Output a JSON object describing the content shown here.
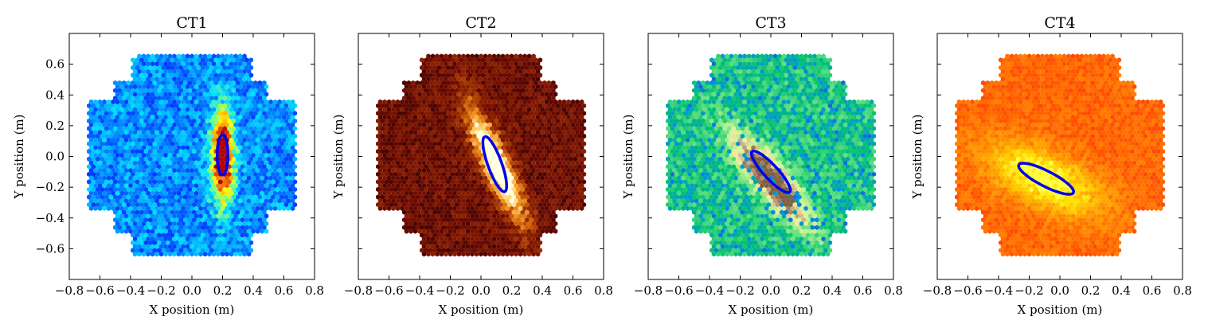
{
  "chart_data": [
    {
      "type": "heatmap",
      "title": "CT1",
      "xlabel": "X position (m)",
      "ylabel": "Y position (m)",
      "xlim": [
        -0.8,
        0.8
      ],
      "ylim": [
        -0.8,
        0.8
      ],
      "xticks": [
        "−0.8",
        "−0.6",
        "−0.4",
        "−0.2",
        "0.0",
        "0.2",
        "0.4",
        "0.6",
        "0.8"
      ],
      "yticks": [
        "−0.6",
        "−0.4",
        "−0.2",
        "0.0",
        "0.2",
        "0.4",
        "0.6"
      ],
      "ytick_labels_visible": true,
      "colormap": [
        "#0000b8",
        "#0020ff",
        "#0080ff",
        "#00e0ff",
        "#80ff80",
        "#ffff00",
        "#ff8000",
        "#b00000"
      ],
      "shower": {
        "center": [
          0.2,
          0.0
        ],
        "angle_deg": 90,
        "length": 0.4,
        "width": 0.05,
        "peak": 0.95
      },
      "hillas_ellipse": {
        "center": [
          0.2,
          0.01
        ],
        "semi_major": 0.13,
        "semi_minor": 0.035,
        "angle_deg": 90,
        "color": "#0000ee"
      }
    },
    {
      "type": "heatmap",
      "title": "CT2",
      "xlabel": "X position (m)",
      "ylabel": "Y position (m)",
      "xlim": [
        -0.8,
        0.8
      ],
      "ylim": [
        -0.8,
        0.8
      ],
      "xticks": [
        "−0.8",
        "−0.6",
        "−0.4",
        "−0.2",
        "0.0",
        "0.2",
        "0.4",
        "0.6",
        "0.8"
      ],
      "yticks": [
        "−0.6",
        "−0.4",
        "−0.2",
        "0.0",
        "0.2",
        "0.4",
        "0.6"
      ],
      "ytick_labels_visible": false,
      "colormap": [
        "#000000",
        "#3a0000",
        "#6b0a00",
        "#8b2000",
        "#c05000",
        "#f09020",
        "#ffd070",
        "#ffffe0"
      ],
      "shower": {
        "center": [
          0.1,
          -0.05
        ],
        "angle_deg": 115,
        "length": 0.55,
        "width": 0.06,
        "peak": 0.95
      },
      "hillas_ellipse": {
        "center": [
          0.09,
          -0.05
        ],
        "semi_major": 0.19,
        "semi_minor": 0.045,
        "angle_deg": 110,
        "color": "#0000ee"
      }
    },
    {
      "type": "heatmap",
      "title": "CT3",
      "xlabel": "X position (m)",
      "ylabel": "Y position (m)",
      "xlim": [
        -0.8,
        0.8
      ],
      "ylim": [
        -0.8,
        0.8
      ],
      "xticks": [
        "−0.8",
        "−0.6",
        "−0.4",
        "−0.2",
        "0.0",
        "0.2",
        "0.4",
        "0.6",
        "0.8"
      ],
      "yticks": [
        "−0.6",
        "−0.4",
        "−0.2",
        "0.0",
        "0.2",
        "0.4",
        "0.6"
      ],
      "ytick_labels_visible": false,
      "colormap": [
        "#2020b0",
        "#0090e0",
        "#00c070",
        "#60e080",
        "#c0f090",
        "#f0f0a0",
        "#c0a080",
        "#806040"
      ],
      "shower": {
        "center": [
          0.0,
          -0.15
        ],
        "angle_deg": 130,
        "length": 0.5,
        "width": 0.07,
        "peak": 0.95
      },
      "hillas_ellipse": {
        "center": [
          0.0,
          -0.1
        ],
        "semi_major": 0.18,
        "semi_minor": 0.045,
        "angle_deg": 133,
        "color": "#0000ee"
      }
    },
    {
      "type": "heatmap",
      "title": "CT4",
      "xlabel": "X position (m)",
      "ylabel": "Y position (m)",
      "xlim": [
        -0.8,
        0.8
      ],
      "ylim": [
        -0.8,
        0.8
      ],
      "xticks": [
        "−0.8",
        "−0.6",
        "−0.4",
        "−0.2",
        "0.0",
        "0.2",
        "0.4",
        "0.6",
        "0.8"
      ],
      "yticks": [
        "−0.6",
        "−0.4",
        "−0.2",
        "0.0",
        "0.2",
        "0.4",
        "0.6"
      ],
      "ytick_labels_visible": false,
      "colormap": [
        "#ff2000",
        "#ff4000",
        "#ff6000",
        "#ff8000",
        "#ffa000",
        "#ffc000",
        "#ffe000",
        "#ffff40"
      ],
      "shower": {
        "center": [
          -0.1,
          -0.15
        ],
        "angle_deg": 155,
        "length": 0.55,
        "width": 0.12,
        "peak": 0.8
      },
      "hillas_ellipse": {
        "center": [
          -0.09,
          -0.145
        ],
        "semi_major": 0.2,
        "semi_minor": 0.05,
        "angle_deg": 153,
        "color": "#0000ee"
      }
    }
  ]
}
